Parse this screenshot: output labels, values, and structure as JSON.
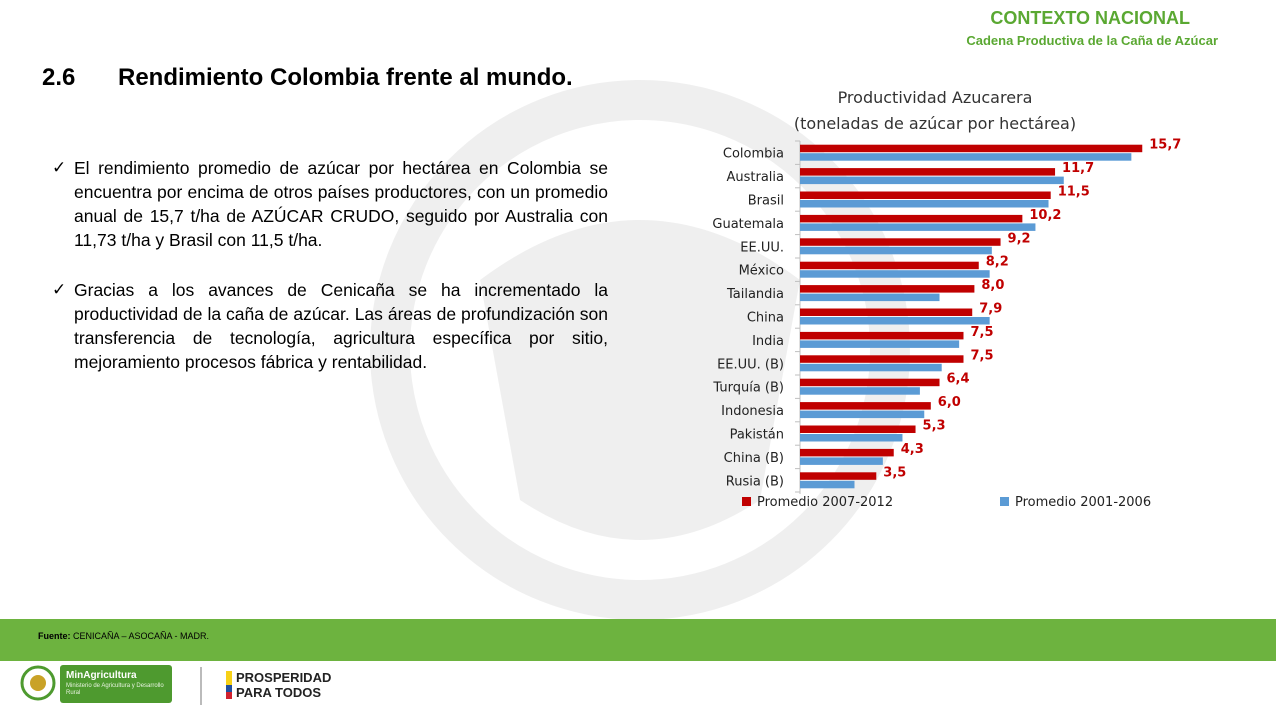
{
  "header": {
    "title": "CONTEXTO NACIONAL",
    "subtitle": "Cadena Productiva de la Caña de Azúcar"
  },
  "section": {
    "number": "2.6",
    "title": "Rendimiento Colombia frente al mundo."
  },
  "bullets": [
    "El rendimiento promedio de azúcar por hectárea en Colombia se encuentra por encima de otros países productores, con un promedio anual de 15,7 t/ha de AZÚCAR CRUDO, seguido por Australia con 11,73 t/ha y Brasil con 11,5 t/ha.",
    "Gracias a los avances de Cenicaña se ha incrementado la productividad de la caña de azúcar. Las áreas de profundización son transferencia de tecnología, agricultura específica por sitio, mejoramiento procesos fábrica y rentabilidad."
  ],
  "chart_data": {
    "type": "bar",
    "orientation": "horizontal",
    "title": "Productividad Azucarera",
    "subtitle": "(toneladas de azúcar por hectárea)",
    "categories": [
      "Colombia",
      "Australia",
      "Brasil",
      "Guatemala",
      "EE.UU.",
      "México",
      "Tailandia",
      "China",
      "India",
      "EE.UU. (B)",
      "Turquía (B)",
      "Indonesia",
      "Pakistán",
      "China (B)",
      "Rusia (B)"
    ],
    "series": [
      {
        "name": "Promedio 2007-2012",
        "color": "#c00000",
        "values": [
          15.7,
          11.7,
          11.5,
          10.2,
          9.2,
          8.2,
          8.0,
          7.9,
          7.5,
          7.5,
          6.4,
          6.0,
          5.3,
          4.3,
          3.5
        ]
      },
      {
        "name": "Promedio 2001-2006",
        "color": "#5b9bd5",
        "values": [
          15.2,
          12.1,
          11.4,
          10.8,
          8.8,
          8.7,
          6.4,
          8.7,
          7.3,
          6.5,
          5.5,
          5.7,
          4.7,
          3.8,
          2.5
        ]
      }
    ],
    "data_labels": [
      "15,7",
      "11,7",
      "11,5",
      "10,2",
      "9,2",
      "8,2",
      "8,0",
      "7,9",
      "7,5",
      "7,5",
      "6,4",
      "6,0",
      "5,3",
      "4,3",
      "3,5"
    ],
    "xlim": [
      0,
      16
    ],
    "legend": "bottom",
    "grid": false
  },
  "footer": {
    "source_label": "Fuente:",
    "source_text": "CENICAÑA – ASOCAÑA - MADR.",
    "ministry": "MinAgricultura",
    "ministry_sub": "Ministerio de Agricultura y Desarrollo Rural",
    "prosperity_1": "PROSPERIDAD",
    "prosperity_2": "PARA TODOS"
  }
}
